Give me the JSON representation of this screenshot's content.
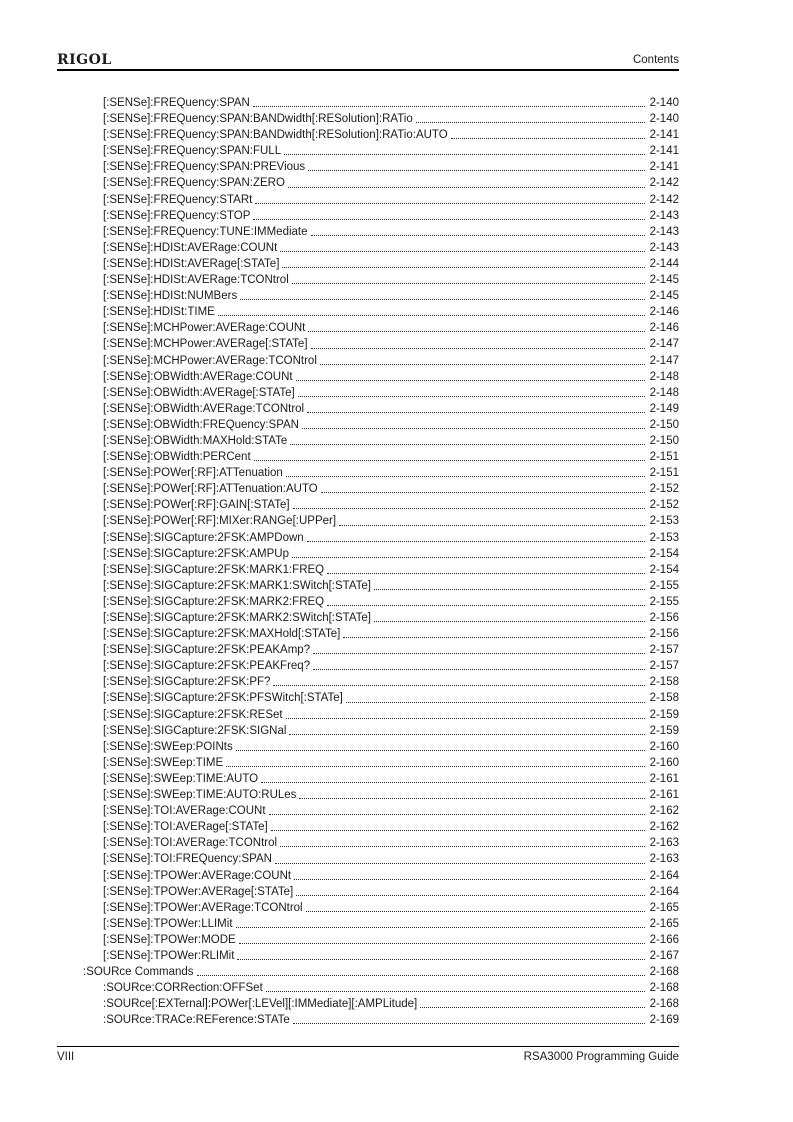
{
  "palette": {
    "background": "#ffffff",
    "text": "#1c1c1c",
    "rule": "#000000"
  },
  "header": {
    "brand": "RIGOL",
    "section": "Contents"
  },
  "footer": {
    "page_number": "VIII",
    "doc_title": "RSA3000 Programming Guide"
  },
  "toc": {
    "entries": [
      {
        "level": 2,
        "label": "[:SENSe]:FREQuency:SPAN",
        "page": "2-140"
      },
      {
        "level": 2,
        "label": "[:SENSe]:FREQuency:SPAN:BANDwidth[:RESolution]:RATio",
        "page": "2-140"
      },
      {
        "level": 2,
        "label": "[:SENSe]:FREQuency:SPAN:BANDwidth[:RESolution]:RATio:AUTO",
        "page": "2-141"
      },
      {
        "level": 2,
        "label": "[:SENSe]:FREQuency:SPAN:FULL",
        "page": "2-141"
      },
      {
        "level": 2,
        "label": "[:SENSe]:FREQuency:SPAN:PREVious",
        "page": "2-141"
      },
      {
        "level": 2,
        "label": "[:SENSe]:FREQuency:SPAN:ZERO",
        "page": "2-142"
      },
      {
        "level": 2,
        "label": "[:SENSe]:FREQuency:STARt",
        "page": "2-142"
      },
      {
        "level": 2,
        "label": "[:SENSe]:FREQuency:STOP",
        "page": "2-143"
      },
      {
        "level": 2,
        "label": "[:SENSe]:FREQuency:TUNE:IMMediate",
        "page": "2-143"
      },
      {
        "level": 2,
        "label": "[:SENSe]:HDISt:AVERage:COUNt",
        "page": "2-143"
      },
      {
        "level": 2,
        "label": "[:SENSe]:HDISt:AVERage[:STATe]",
        "page": "2-144"
      },
      {
        "level": 2,
        "label": "[:SENSe]:HDISt:AVERage:TCONtrol",
        "page": "2-145"
      },
      {
        "level": 2,
        "label": "[:SENSe]:HDISt:NUMBers",
        "page": "2-145"
      },
      {
        "level": 2,
        "label": "[:SENSe]:HDISt:TIME",
        "page": "2-146"
      },
      {
        "level": 2,
        "label": "[:SENSe]:MCHPower:AVERage:COUNt",
        "page": "2-146"
      },
      {
        "level": 2,
        "label": "[:SENSe]:MCHPower:AVERage[:STATe]",
        "page": "2-147"
      },
      {
        "level": 2,
        "label": "[:SENSe]:MCHPower:AVERage:TCONtrol",
        "page": "2-147"
      },
      {
        "level": 2,
        "label": "[:SENSe]:OBWidth:AVERage:COUNt",
        "page": "2-148"
      },
      {
        "level": 2,
        "label": "[:SENSe]:OBWidth:AVERage[:STATe]",
        "page": "2-148"
      },
      {
        "level": 2,
        "label": "[:SENSe]:OBWidth:AVERage:TCONtrol",
        "page": "2-149"
      },
      {
        "level": 2,
        "label": "[:SENSe]:OBWidth:FREQuency:SPAN",
        "page": "2-150"
      },
      {
        "level": 2,
        "label": "[:SENSe]:OBWidth:MAXHold:STATe",
        "page": "2-150"
      },
      {
        "level": 2,
        "label": "[:SENSe]:OBWidth:PERCent",
        "page": "2-151"
      },
      {
        "level": 2,
        "label": "[:SENSe]:POWer[:RF]:ATTenuation",
        "page": "2-151"
      },
      {
        "level": 2,
        "label": "[:SENSe]:POWer[:RF]:ATTenuation:AUTO",
        "page": "2-152"
      },
      {
        "level": 2,
        "label": "[:SENSe]:POWer[:RF]:GAIN[:STATe]",
        "page": "2-152"
      },
      {
        "level": 2,
        "label": "[:SENSe]:POWer[:RF]:MIXer:RANGe[:UPPer]",
        "page": "2-153"
      },
      {
        "level": 2,
        "label": "[:SENSe]:SIGCapture:2FSK:AMPDown",
        "page": "2-153"
      },
      {
        "level": 2,
        "label": "[:SENSe]:SIGCapture:2FSK:AMPUp",
        "page": "2-154"
      },
      {
        "level": 2,
        "label": "[:SENSe]:SIGCapture:2FSK:MARK1:FREQ",
        "page": "2-154"
      },
      {
        "level": 2,
        "label": "[:SENSe]:SIGCapture:2FSK:MARK1:SWitch[:STATe]",
        "page": "2-155"
      },
      {
        "level": 2,
        "label": "[:SENSe]:SIGCapture:2FSK:MARK2:FREQ",
        "page": "2-155"
      },
      {
        "level": 2,
        "label": "[:SENSe]:SIGCapture:2FSK:MARK2:SWitch[:STATe]",
        "page": "2-156"
      },
      {
        "level": 2,
        "label": "[:SENSe]:SIGCapture:2FSK:MAXHold[:STATe]",
        "page": "2-156"
      },
      {
        "level": 2,
        "label": "[:SENSe]:SIGCapture:2FSK:PEAKAmp?",
        "page": "2-157"
      },
      {
        "level": 2,
        "label": "[:SENSe]:SIGCapture:2FSK:PEAKFreq?",
        "page": "2-157"
      },
      {
        "level": 2,
        "label": "[:SENSe]:SIGCapture:2FSK:PF?",
        "page": "2-158"
      },
      {
        "level": 2,
        "label": "[:SENSe]:SIGCapture:2FSK:PFSWitch[:STATe]",
        "page": "2-158"
      },
      {
        "level": 2,
        "label": "[:SENSe]:SIGCapture:2FSK:RESet",
        "page": "2-159"
      },
      {
        "level": 2,
        "label": "[:SENSe]:SIGCapture:2FSK:SIGNal",
        "page": "2-159"
      },
      {
        "level": 2,
        "label": "[:SENSe]:SWEep:POINts",
        "page": "2-160"
      },
      {
        "level": 2,
        "label": "[:SENSe]:SWEep:TIME",
        "page": "2-160"
      },
      {
        "level": 2,
        "label": "[:SENSe]:SWEep:TIME:AUTO",
        "page": "2-161"
      },
      {
        "level": 2,
        "label": "[:SENSe]:SWEep:TIME:AUTO:RULes",
        "page": "2-161"
      },
      {
        "level": 2,
        "label": "[:SENSe]:TOI:AVERage:COUNt",
        "page": "2-162"
      },
      {
        "level": 2,
        "label": "[:SENSe]:TOI:AVERage[:STATe]",
        "page": "2-162"
      },
      {
        "level": 2,
        "label": "[:SENSe]:TOI:AVERage:TCONtrol",
        "page": "2-163"
      },
      {
        "level": 2,
        "label": "[:SENSe]:TOI:FREQuency:SPAN",
        "page": "2-163"
      },
      {
        "level": 2,
        "label": "[:SENSe]:TPOWer:AVERage:COUNt",
        "page": "2-164"
      },
      {
        "level": 2,
        "label": "[:SENSe]:TPOWer:AVERage[:STATe]",
        "page": "2-164"
      },
      {
        "level": 2,
        "label": "[:SENSe]:TPOWer:AVERage:TCONtrol",
        "page": "2-165"
      },
      {
        "level": 2,
        "label": "[:SENSe]:TPOWer:LLIMit",
        "page": "2-165"
      },
      {
        "level": 2,
        "label": "[:SENSe]:TPOWer:MODE",
        "page": "2-166"
      },
      {
        "level": 2,
        "label": "[:SENSe]:TPOWer:RLIMit",
        "page": "2-167"
      },
      {
        "level": 1,
        "label": ":SOURce Commands",
        "page": "2-168"
      },
      {
        "level": 2,
        "label": ":SOURce:CORRection:OFFSet",
        "page": "2-168"
      },
      {
        "level": 2,
        "label": ":SOURce[:EXTernal]:POWer[:LEVel][:IMMediate][:AMPLitude]",
        "page": "2-168"
      },
      {
        "level": 2,
        "label": ":SOURce:TRACe:REFerence:STATe",
        "page": "2-169"
      }
    ]
  }
}
